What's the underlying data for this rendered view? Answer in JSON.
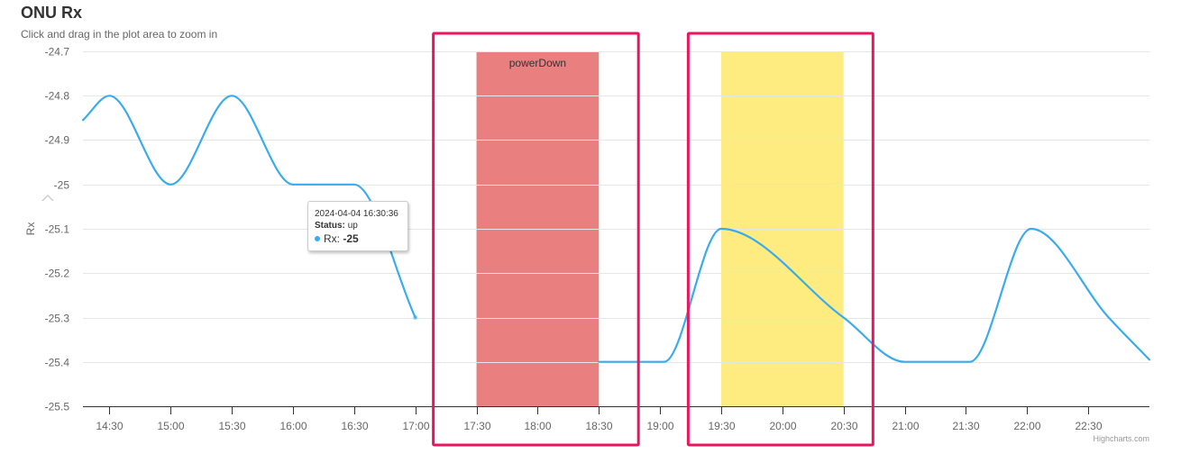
{
  "header": {
    "title": "ONU Rx",
    "subtitle": "Click and drag in the plot area to zoom in"
  },
  "credits": "Highcharts.com",
  "tooltip": {
    "date": "2024-04-04 16:30:36",
    "status_label": "Status:",
    "status_value": "up",
    "series_label": "Rx:",
    "series_value": "-25"
  },
  "chart_data": {
    "type": "line",
    "title": "ONU Rx",
    "subtitle": "Click and drag in the plot area to zoom in",
    "xlabel": "",
    "ylabel": "Rx",
    "ylim": [
      -25.5,
      -24.7
    ],
    "y_ticks": [
      "-24.7",
      "-24.8",
      "-24.9",
      "-25",
      "-25.1",
      "-25.2",
      "-25.3",
      "-25.4",
      "-25.5"
    ],
    "x_ticks": [
      "14:30",
      "15:00",
      "15:30",
      "16:00",
      "16:30",
      "17:00",
      "17:30",
      "18:00",
      "18:30",
      "19:00",
      "19:30",
      "20:00",
      "20:30",
      "21:00",
      "21:30",
      "22:00",
      "22:30"
    ],
    "xlim": [
      "14:17",
      "23:00"
    ],
    "grid": true,
    "series": [
      {
        "name": "Rx",
        "color": "#3aabec",
        "segments": [
          [
            {
              "x": "14:17",
              "y": -24.855
            },
            {
              "x": "14:30",
              "y": -24.8
            },
            {
              "x": "15:00",
              "y": -25.0
            },
            {
              "x": "15:30",
              "y": -24.8
            },
            {
              "x": "16:00",
              "y": -25.0
            },
            {
              "x": "16:30",
              "y": -25.0
            },
            {
              "x": "17:00",
              "y": -25.3
            }
          ],
          [
            {
              "x": "18:30",
              "y": -25.4
            },
            {
              "x": "19:02",
              "y": -25.4
            },
            {
              "x": "19:30",
              "y": -25.1
            },
            {
              "x": "20:30",
              "y": -25.3
            },
            {
              "x": "21:00",
              "y": -25.4
            },
            {
              "x": "21:32",
              "y": -25.4
            },
            {
              "x": "22:02",
              "y": -25.1
            },
            {
              "x": "22:40",
              "y": -25.3
            },
            {
              "x": "23:00",
              "y": -25.395
            }
          ]
        ]
      }
    ],
    "plot_bands": [
      {
        "from": "17:30",
        "to": "18:30",
        "color": "#e97f7f",
        "label": "powerDown"
      },
      {
        "from": "19:30",
        "to": "20:30",
        "color": "#ffec80",
        "label": ""
      }
    ],
    "highlight_boxes": [
      {
        "from": "17:15",
        "to": "18:45",
        "color": "#e8175d"
      },
      {
        "from": "19:20",
        "to": "20:40",
        "color": "#e8175d"
      }
    ],
    "hover_point": {
      "x": "16:30",
      "y": -25.0
    }
  }
}
